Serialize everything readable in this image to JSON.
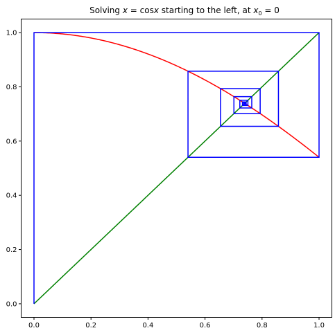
{
  "chart_data": {
    "type": "line",
    "title": {
      "prefix": "Solving ",
      "equation_lhs": "x",
      "equation_op": " = cos",
      "equation_rhs": "x",
      "middle": " starting to the left, at ",
      "var": "x",
      "sub": "0",
      "suffix": " = 0"
    },
    "xlabel": "",
    "ylabel": "",
    "xlim": [
      -0.045,
      1.045
    ],
    "ylim": [
      -0.05,
      1.05
    ],
    "xticks": [
      0.0,
      0.2,
      0.4,
      0.6,
      0.8,
      1.0
    ],
    "yticks": [
      0.0,
      0.2,
      0.4,
      0.6,
      0.8,
      1.0
    ],
    "xtick_labels": [
      "0.0",
      "0.2",
      "0.4",
      "0.6",
      "0.8",
      "1.0"
    ],
    "ytick_labels": [
      "0.0",
      "0.2",
      "0.4",
      "0.6",
      "0.8",
      "1.0"
    ],
    "grid": false,
    "series": [
      {
        "color": "#ff0000",
        "function": "cos",
        "x_range": [
          0,
          1
        ]
      },
      {
        "color": "#008000",
        "function": "identity",
        "x_range": [
          0,
          1
        ]
      },
      {
        "color": "#0000ff",
        "kind": "cobweb",
        "x0": 0,
        "iterations": 20
      }
    ]
  }
}
